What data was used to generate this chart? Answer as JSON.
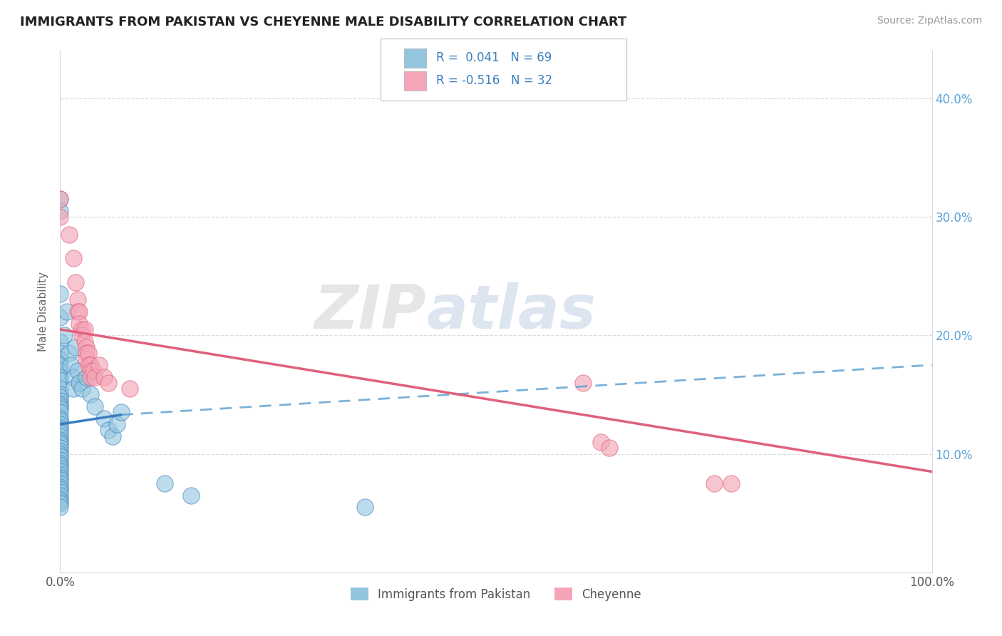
{
  "title": "IMMIGRANTS FROM PAKISTAN VS CHEYENNE MALE DISABILITY CORRELATION CHART",
  "source": "Source: ZipAtlas.com",
  "watermark_zip": "ZIP",
  "watermark_atlas": "atlas",
  "xlabel": "",
  "ylabel": "Male Disability",
  "xlim": [
    0,
    1.0
  ],
  "ylim": [
    0.0,
    0.44
  ],
  "color_blue": "#92c5de",
  "color_pink": "#f4a6b8",
  "color_blue_line": "#3a7ebf",
  "color_pink_line": "#e0607a",
  "color_blue_dash": "#5b9ecf",
  "grid_color": "#d8d8d8",
  "background_color": "#ffffff",
  "blue_scatter": [
    [
      0.0,
      0.315
    ],
    [
      0.0,
      0.305
    ],
    [
      0.0,
      0.235
    ],
    [
      0.0,
      0.215
    ],
    [
      0.0,
      0.195
    ],
    [
      0.0,
      0.185
    ],
    [
      0.0,
      0.18
    ],
    [
      0.0,
      0.175
    ],
    [
      0.0,
      0.17
    ],
    [
      0.0,
      0.165
    ],
    [
      0.0,
      0.162
    ],
    [
      0.0,
      0.155
    ],
    [
      0.0,
      0.15
    ],
    [
      0.0,
      0.148
    ],
    [
      0.0,
      0.145
    ],
    [
      0.0,
      0.142
    ],
    [
      0.0,
      0.14
    ],
    [
      0.0,
      0.138
    ],
    [
      0.0,
      0.135
    ],
    [
      0.0,
      0.13
    ],
    [
      0.0,
      0.128
    ],
    [
      0.0,
      0.125
    ],
    [
      0.0,
      0.122
    ],
    [
      0.0,
      0.12
    ],
    [
      0.0,
      0.118
    ],
    [
      0.0,
      0.115
    ],
    [
      0.0,
      0.112
    ],
    [
      0.0,
      0.11
    ],
    [
      0.0,
      0.108
    ],
    [
      0.0,
      0.105
    ],
    [
      0.0,
      0.102
    ],
    [
      0.0,
      0.1
    ],
    [
      0.0,
      0.098
    ],
    [
      0.0,
      0.095
    ],
    [
      0.0,
      0.092
    ],
    [
      0.0,
      0.09
    ],
    [
      0.0,
      0.088
    ],
    [
      0.0,
      0.085
    ],
    [
      0.0,
      0.082
    ],
    [
      0.0,
      0.08
    ],
    [
      0.0,
      0.078
    ],
    [
      0.0,
      0.075
    ],
    [
      0.0,
      0.072
    ],
    [
      0.0,
      0.07
    ],
    [
      0.0,
      0.068
    ],
    [
      0.0,
      0.065
    ],
    [
      0.0,
      0.062
    ],
    [
      0.0,
      0.06
    ],
    [
      0.0,
      0.058
    ],
    [
      0.0,
      0.055
    ],
    [
      0.005,
      0.2
    ],
    [
      0.008,
      0.22
    ],
    [
      0.01,
      0.185
    ],
    [
      0.012,
      0.175
    ],
    [
      0.015,
      0.165
    ],
    [
      0.015,
      0.155
    ],
    [
      0.018,
      0.19
    ],
    [
      0.02,
      0.17
    ],
    [
      0.022,
      0.16
    ],
    [
      0.025,
      0.155
    ],
    [
      0.03,
      0.165
    ],
    [
      0.035,
      0.15
    ],
    [
      0.04,
      0.14
    ],
    [
      0.05,
      0.13
    ],
    [
      0.055,
      0.12
    ],
    [
      0.06,
      0.115
    ],
    [
      0.065,
      0.125
    ],
    [
      0.07,
      0.135
    ],
    [
      0.12,
      0.075
    ],
    [
      0.15,
      0.065
    ],
    [
      0.35,
      0.055
    ]
  ],
  "pink_scatter": [
    [
      0.0,
      0.315
    ],
    [
      0.0,
      0.3
    ],
    [
      0.01,
      0.285
    ],
    [
      0.015,
      0.265
    ],
    [
      0.018,
      0.245
    ],
    [
      0.02,
      0.23
    ],
    [
      0.02,
      0.22
    ],
    [
      0.022,
      0.22
    ],
    [
      0.022,
      0.21
    ],
    [
      0.025,
      0.205
    ],
    [
      0.025,
      0.2
    ],
    [
      0.028,
      0.205
    ],
    [
      0.028,
      0.195
    ],
    [
      0.03,
      0.19
    ],
    [
      0.03,
      0.185
    ],
    [
      0.03,
      0.18
    ],
    [
      0.032,
      0.185
    ],
    [
      0.032,
      0.175
    ],
    [
      0.035,
      0.175
    ],
    [
      0.035,
      0.17
    ],
    [
      0.035,
      0.165
    ],
    [
      0.038,
      0.17
    ],
    [
      0.04,
      0.165
    ],
    [
      0.045,
      0.175
    ],
    [
      0.05,
      0.165
    ],
    [
      0.055,
      0.16
    ],
    [
      0.08,
      0.155
    ],
    [
      0.6,
      0.16
    ],
    [
      0.62,
      0.11
    ],
    [
      0.63,
      0.105
    ],
    [
      0.75,
      0.075
    ],
    [
      0.77,
      0.075
    ]
  ],
  "blue_solid_line": {
    "x0": 0.0,
    "y0": 0.125,
    "x1": 0.07,
    "y1": 0.133
  },
  "blue_dash_line": {
    "x0": 0.07,
    "y0": 0.133,
    "x1": 1.0,
    "y1": 0.175
  },
  "pink_solid_line": {
    "x0": 0.0,
    "y0": 0.205,
    "x1": 1.0,
    "y1": 0.085
  }
}
